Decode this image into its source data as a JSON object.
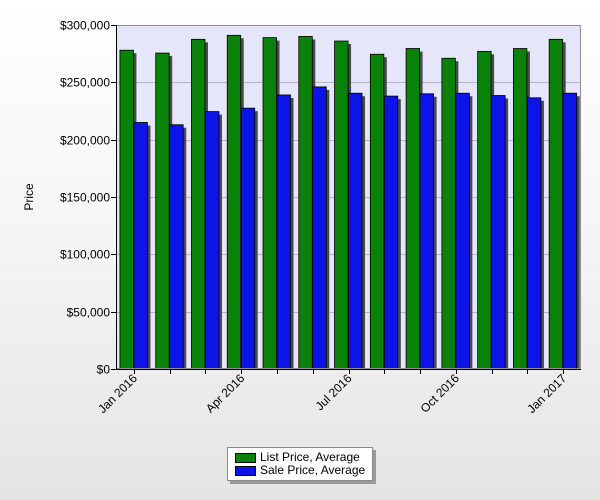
{
  "chart_data": {
    "type": "bar",
    "title": "",
    "ylabel": "Price",
    "xlabel": "",
    "ylim": [
      0,
      300000
    ],
    "yticks": [
      0,
      50000,
      100000,
      150000,
      200000,
      250000,
      300000
    ],
    "ytick_labels": [
      "$0",
      "$50,000",
      "$100,000",
      "$150,000",
      "$200,000",
      "$250,000",
      "$300,000"
    ],
    "categories": [
      "Jan 2016",
      "Feb 2016",
      "Mar 2016",
      "Apr 2016",
      "May 2016",
      "Jun 2016",
      "Jul 2016",
      "Aug 2016",
      "Sep 2016",
      "Oct 2016",
      "Nov 2016",
      "Dec 2016",
      "Jan 2017"
    ],
    "xtick_labels": [
      {
        "index": 0,
        "label": "Jan 2016"
      },
      {
        "index": 3,
        "label": "Apr 2016"
      },
      {
        "index": 6,
        "label": "Jul 2016"
      },
      {
        "index": 9,
        "label": "Oct 2016"
      },
      {
        "index": 12,
        "label": "Jan 2017"
      }
    ],
    "series": [
      {
        "name": "List Price, Average",
        "color": "#0a820a",
        "values": [
          278000,
          275500,
          287500,
          291000,
          289000,
          290000,
          286000,
          274500,
          279500,
          271000,
          277000,
          279500,
          287500
        ]
      },
      {
        "name": "Sale Price, Average",
        "color": "#0c14e6",
        "values": [
          215000,
          213000,
          224500,
          227500,
          239000,
          246000,
          240500,
          238000,
          240000,
          240500,
          238500,
          236500,
          240500
        ]
      }
    ],
    "grid": true,
    "legend_position": "bottom-center",
    "plot_background": "#e6e6fa"
  }
}
